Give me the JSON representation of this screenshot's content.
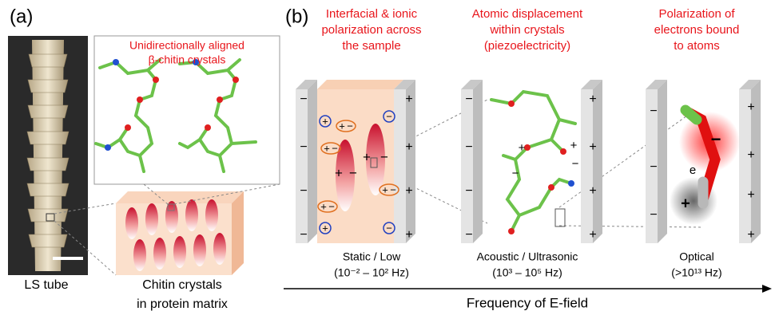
{
  "panel_a": {
    "label": "(a)",
    "inset_title": [
      "Unidirectionally aligned",
      "β-chitin crystals"
    ],
    "photo_caption": "LS tube",
    "block_caption": [
      "Chitin crystals",
      "in protein matrix"
    ]
  },
  "panel_b": {
    "label": "(b)",
    "mechanisms": [
      {
        "title": [
          "Interfacial & ionic",
          "polarization across",
          "the sample"
        ],
        "regime": "Static / Low",
        "frequency": "(10⁻² – 10² Hz)"
      },
      {
        "title": [
          "Atomic displacement",
          "within crystals",
          "(piezoelectricity)"
        ],
        "regime": "Acoustic / Ultrasonic",
        "frequency": "(10³ – 10⁵ Hz)"
      },
      {
        "title": [
          "Polarization of",
          "electrons bound",
          "to atoms"
        ],
        "regime": "Optical",
        "frequency": "(>10¹³ Hz)"
      }
    ],
    "axis_label": "Frequency of E-field",
    "electron_label": "e",
    "signs": {
      "negative": "−",
      "positive": "+"
    }
  }
}
